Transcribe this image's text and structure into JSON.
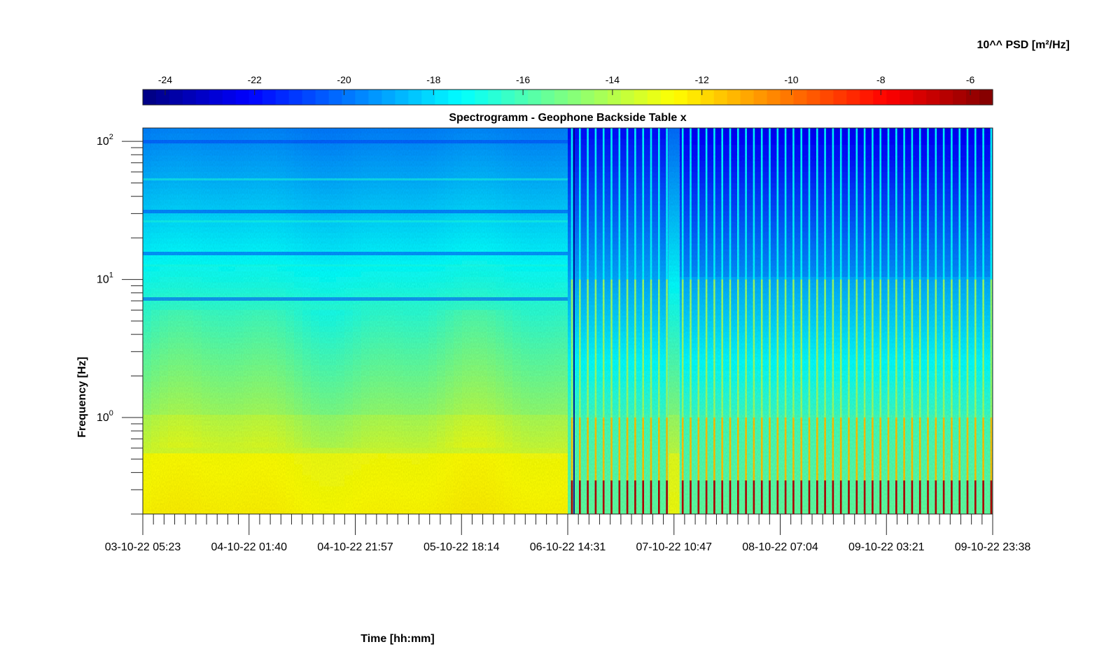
{
  "chart_data": {
    "type": "heatmap",
    "title": "Spectrogramm - Geophone Backside Table x",
    "xlabel": "Time [hh:mm]",
    "ylabel": "Frequency [Hz]",
    "x_scale": "time",
    "x_ticks": [
      "03-10-22 05:23",
      "04-10-22 01:40",
      "04-10-22 21:57",
      "05-10-22 18:14",
      "06-10-22 14:31",
      "07-10-22 10:47",
      "08-10-22 07:04",
      "09-10-22 03:21",
      "09-10-22 23:38"
    ],
    "x_minor_ticks_per_major": 9,
    "y_scale": "log",
    "ylim": [
      0.2,
      125
    ],
    "y_ticks": [
      {
        "base": "10",
        "exp": "0",
        "value": 1
      },
      {
        "base": "10",
        "exp": "1",
        "value": 10
      },
      {
        "base": "10",
        "exp": "2",
        "value": 100
      }
    ],
    "colorbar": {
      "label": "10^^ PSD [m²/Hz]",
      "orientation": "horizontal",
      "position": "top",
      "colormap": "jet",
      "clim": [
        -24.5,
        -5.5
      ],
      "ticks": [
        -24,
        -22,
        -20,
        -18,
        -16,
        -14,
        -12,
        -10,
        -8,
        -6
      ],
      "tick_labels": [
        "-24",
        "-22",
        "-20",
        "-18",
        "-16",
        "-14",
        "-12",
        "-10",
        "-8",
        "-6"
      ],
      "levels": 64
    },
    "description_of_field": {
      "low_freq_band_hz": [
        0.2,
        0.55
      ],
      "low_freq_band_psd_log10": -12.5,
      "mid_freq_psd_log10_at_1hz": -14.5,
      "high_freq_psd_log10_at_100hz": -19.5,
      "regime_change_time": "06-10-22 14:31",
      "gap_band_time": "07-10-22 10:47",
      "after_change_background_log10_at_100hz": -21.5,
      "after_change_periodic_stripe_peak_log10": -6.5
    },
    "axes_box": "on",
    "grid": "off"
  }
}
